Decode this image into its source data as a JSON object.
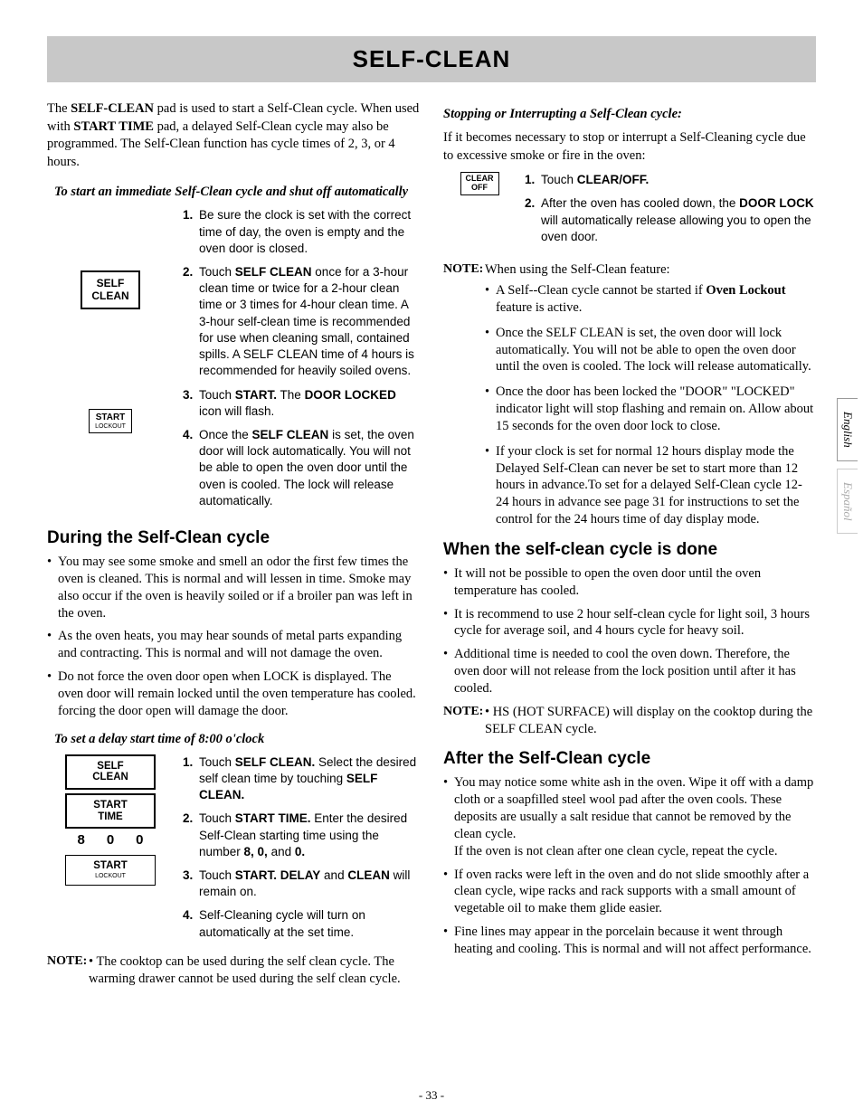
{
  "page": {
    "title": "SELF-CLEAN",
    "number": "- 33 -",
    "lang_tabs": [
      "English",
      "Español"
    ],
    "colors": {
      "title_bg": "#c8c8c8",
      "text": "#000000",
      "bg": "#ffffff"
    }
  },
  "left": {
    "intro_html": "The <b>SELF-CLEAN</b> pad is used to start a Self-Clean cycle. When used with <b>START TIME</b> pad, a delayed Self-Clean cycle may also be programmed. The Self-Clean function has cycle times of 2, 3, or 4 hours.",
    "sub1": "To start an immediate Self-Clean cycle and shut off automatically",
    "btn_selfclean": "SELF\nCLEAN",
    "btn_start": "START",
    "btn_start_sub": "LOCKOUT",
    "steps1": [
      "Be sure the clock is set with the correct time of day, the oven is empty and the oven door is closed.",
      "Touch <b>SELF CLEAN</b> once for a 3-hour clean time or twice for a 2-hour clean time or 3 times for 4-hour clean time. A 3-hour self-clean time is recommended for use when cleaning small, contained spills. A SELF CLEAN time of 4 hours is recommended for heavily soiled ovens.",
      "Touch <b>START.</b> The <b>DOOR LOCKED</b> icon will flash.",
      "Once the <b>SELF CLEAN</b> is set, the oven door will lock automatically. You will not be able to open the oven door until the oven is cooled. The lock will release automatically."
    ],
    "h_during": "During the Self-Clean cycle",
    "during_bullets": [
      "You may see some smoke and smell an odor the first few times the oven is cleaned. This is normal and will lessen in time. Smoke may also occur if the oven is heavily soiled or if a broiler pan was left in the oven.",
      "As the oven heats, you may hear sounds of metal parts expanding and contracting. This is normal and will not damage the oven.",
      "Do not force the oven door open when LOCK is displayed. The oven door will remain locked until the oven temperature has cooled.  forcing the door open will damage the door."
    ],
    "sub2": "To set a delay start time of 8:00 o'clock",
    "btn_starttime": "START\nTIME",
    "digits": [
      "8",
      "0",
      "0"
    ],
    "steps2": [
      "Touch <b>SELF CLEAN.</b> Select the desired self clean time by touching <b>SELF CLEAN.</b>",
      "Touch <b>START TIME.</b> Enter the desired Self-Clean starting time using the number <b>8, 0,</b> and <b>0.</b>",
      "Touch <b>START. DELAY</b> and <b>CLEAN</b> will remain on.",
      "Self-Cleaning cycle will turn on automatically at the set time."
    ],
    "note1_label": "NOTE:",
    "note1": "• The cooktop can be used during the self clean cycle. The warming drawer cannot be used during the self clean cycle."
  },
  "right": {
    "sub1": "Stopping or Interrupting a Self-Clean cycle:",
    "intro": "If it becomes necessary to stop or interrupt a Self-Cleaning cycle due to excessive smoke or fire in the oven:",
    "btn_clearoff": "CLEAR\nOFF",
    "steps": [
      "Touch <b>CLEAR/OFF.</b>",
      "After the oven has cooled down, the <b>DOOR LOCK</b> will automatically release allowing you to open the oven door."
    ],
    "note_label": "NOTE:",
    "note_intro": "When using the Self-Clean feature:",
    "note_bullets": [
      "A Self--Clean cycle cannot be started if <b>Oven Lockout</b> feature is active.",
      "Once the SELF CLEAN is set, the oven door will lock automatically.  You will not be able to open the oven door until the oven is cooled.  The lock will release automatically.",
      "Once the door has been locked the \"DOOR\" \"LOCKED\" indicator light will stop flashing and remain on. Allow about 15 seconds for the oven door lock to close.",
      "If your clock is set for normal 12 hours display mode the Delayed Self-Clean can never be set to start more than 12 hours in advance.To set for a delayed Self-Clean cycle 12- 24 hours in advance see page 31 for instructions to set the control for the 24 hours time of day display mode."
    ],
    "h_done": "When the self-clean cycle is done",
    "done_bullets": [
      "It will not be possible to open the oven door until the oven temperature has cooled.",
      "It is recommend to use 2 hour  self-clean cycle for light soil, 3 hours cycle for average soil, and 4 hours cycle for heavy soil.",
      "Additional time is needed to cool the oven down.  Therefore, the oven door will not release from the lock position until after it has cooled."
    ],
    "note2_label": "NOTE:",
    "note2": "• HS (HOT SURFACE) will display on the cooktop during the SELF CLEAN cycle.",
    "h_after": "After the Self-Clean cycle",
    "after_bullets": [
      "You may notice some white ash in the oven. Wipe it off with a damp cloth or a soapfilled steel wool pad after the oven cools. These deposits are usually a salt residue that cannot be removed by the clean cycle.<br>If the oven is not clean after one clean cycle, repeat the cycle.",
      "If oven racks were left in the oven and do not slide smoothly after a clean cycle, wipe racks and rack supports with a small amount of vegetable oil to make them glide easier.",
      "Fine lines may appear in the porcelain because it went through heating and cooling. This is normal and will not affect performance."
    ]
  }
}
